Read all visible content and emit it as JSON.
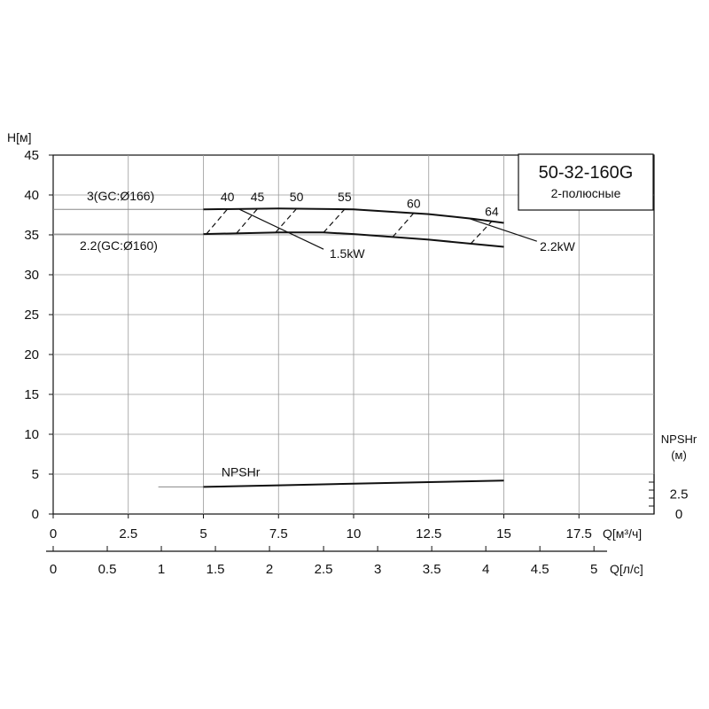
{
  "chart_data": {
    "type": "line",
    "model_title": "50-32-160G",
    "model_subtitle": "2-полюсные",
    "y_axis": {
      "label": "H[м]",
      "ylim": [
        0,
        45
      ],
      "ticks": [
        "0",
        "5",
        "10",
        "15",
        "20",
        "25",
        "30",
        "35",
        "40",
        "45"
      ]
    },
    "x_axis_flow_m3h": {
      "label": "Q[м³/ч]",
      "xlim": [
        0,
        20
      ],
      "ticks": [
        "0",
        "2.5",
        "5",
        "7.5",
        "10",
        "12.5",
        "15",
        "17.5"
      ]
    },
    "x_axis_flow_ls": {
      "label": "Q[л/с]",
      "ticks": [
        "0",
        "0.5",
        "1",
        "1.5",
        "2",
        "2.5",
        "3",
        "3.5",
        "4",
        "4.5",
        "5"
      ]
    },
    "npsh_axis": {
      "label_line1": "NPSHr",
      "label_line2": "(м)",
      "ticks": [
        "0",
        "2.5"
      ]
    },
    "series": [
      {
        "name": "3(GC:Ø166)",
        "x": [
          5,
          7.5,
          10,
          12.5,
          14,
          15
        ],
        "y": [
          38.2,
          38.3,
          38.2,
          37.6,
          37.0,
          36.5
        ]
      },
      {
        "name": "2.2(GC:Ø160)",
        "x": [
          5,
          7.5,
          9,
          10,
          12.5,
          15
        ],
        "y": [
          35.1,
          35.3,
          35.3,
          35.1,
          34.4,
          33.5
        ]
      },
      {
        "name": "NPSHr",
        "x": [
          5,
          7.5,
          10,
          12.5,
          15
        ],
        "y": [
          3.4,
          3.6,
          3.8,
          4.0,
          4.2
        ]
      }
    ],
    "efficiency_labels": [
      {
        "text": "40",
        "x": 5.8,
        "y": 39.2
      },
      {
        "text": "45",
        "x": 6.8,
        "y": 39.2
      },
      {
        "text": "50",
        "x": 8.1,
        "y": 39.2
      },
      {
        "text": "55",
        "x": 9.7,
        "y": 39.2
      },
      {
        "text": "60",
        "x": 12.0,
        "y": 38.4
      },
      {
        "text": "64",
        "x": 14.6,
        "y": 37.4
      }
    ],
    "power_labels": [
      {
        "text": "1.5kW",
        "x": 9.2,
        "y": 32.1
      },
      {
        "text": "2.2kW",
        "x": 16.2,
        "y": 33.0
      }
    ]
  }
}
